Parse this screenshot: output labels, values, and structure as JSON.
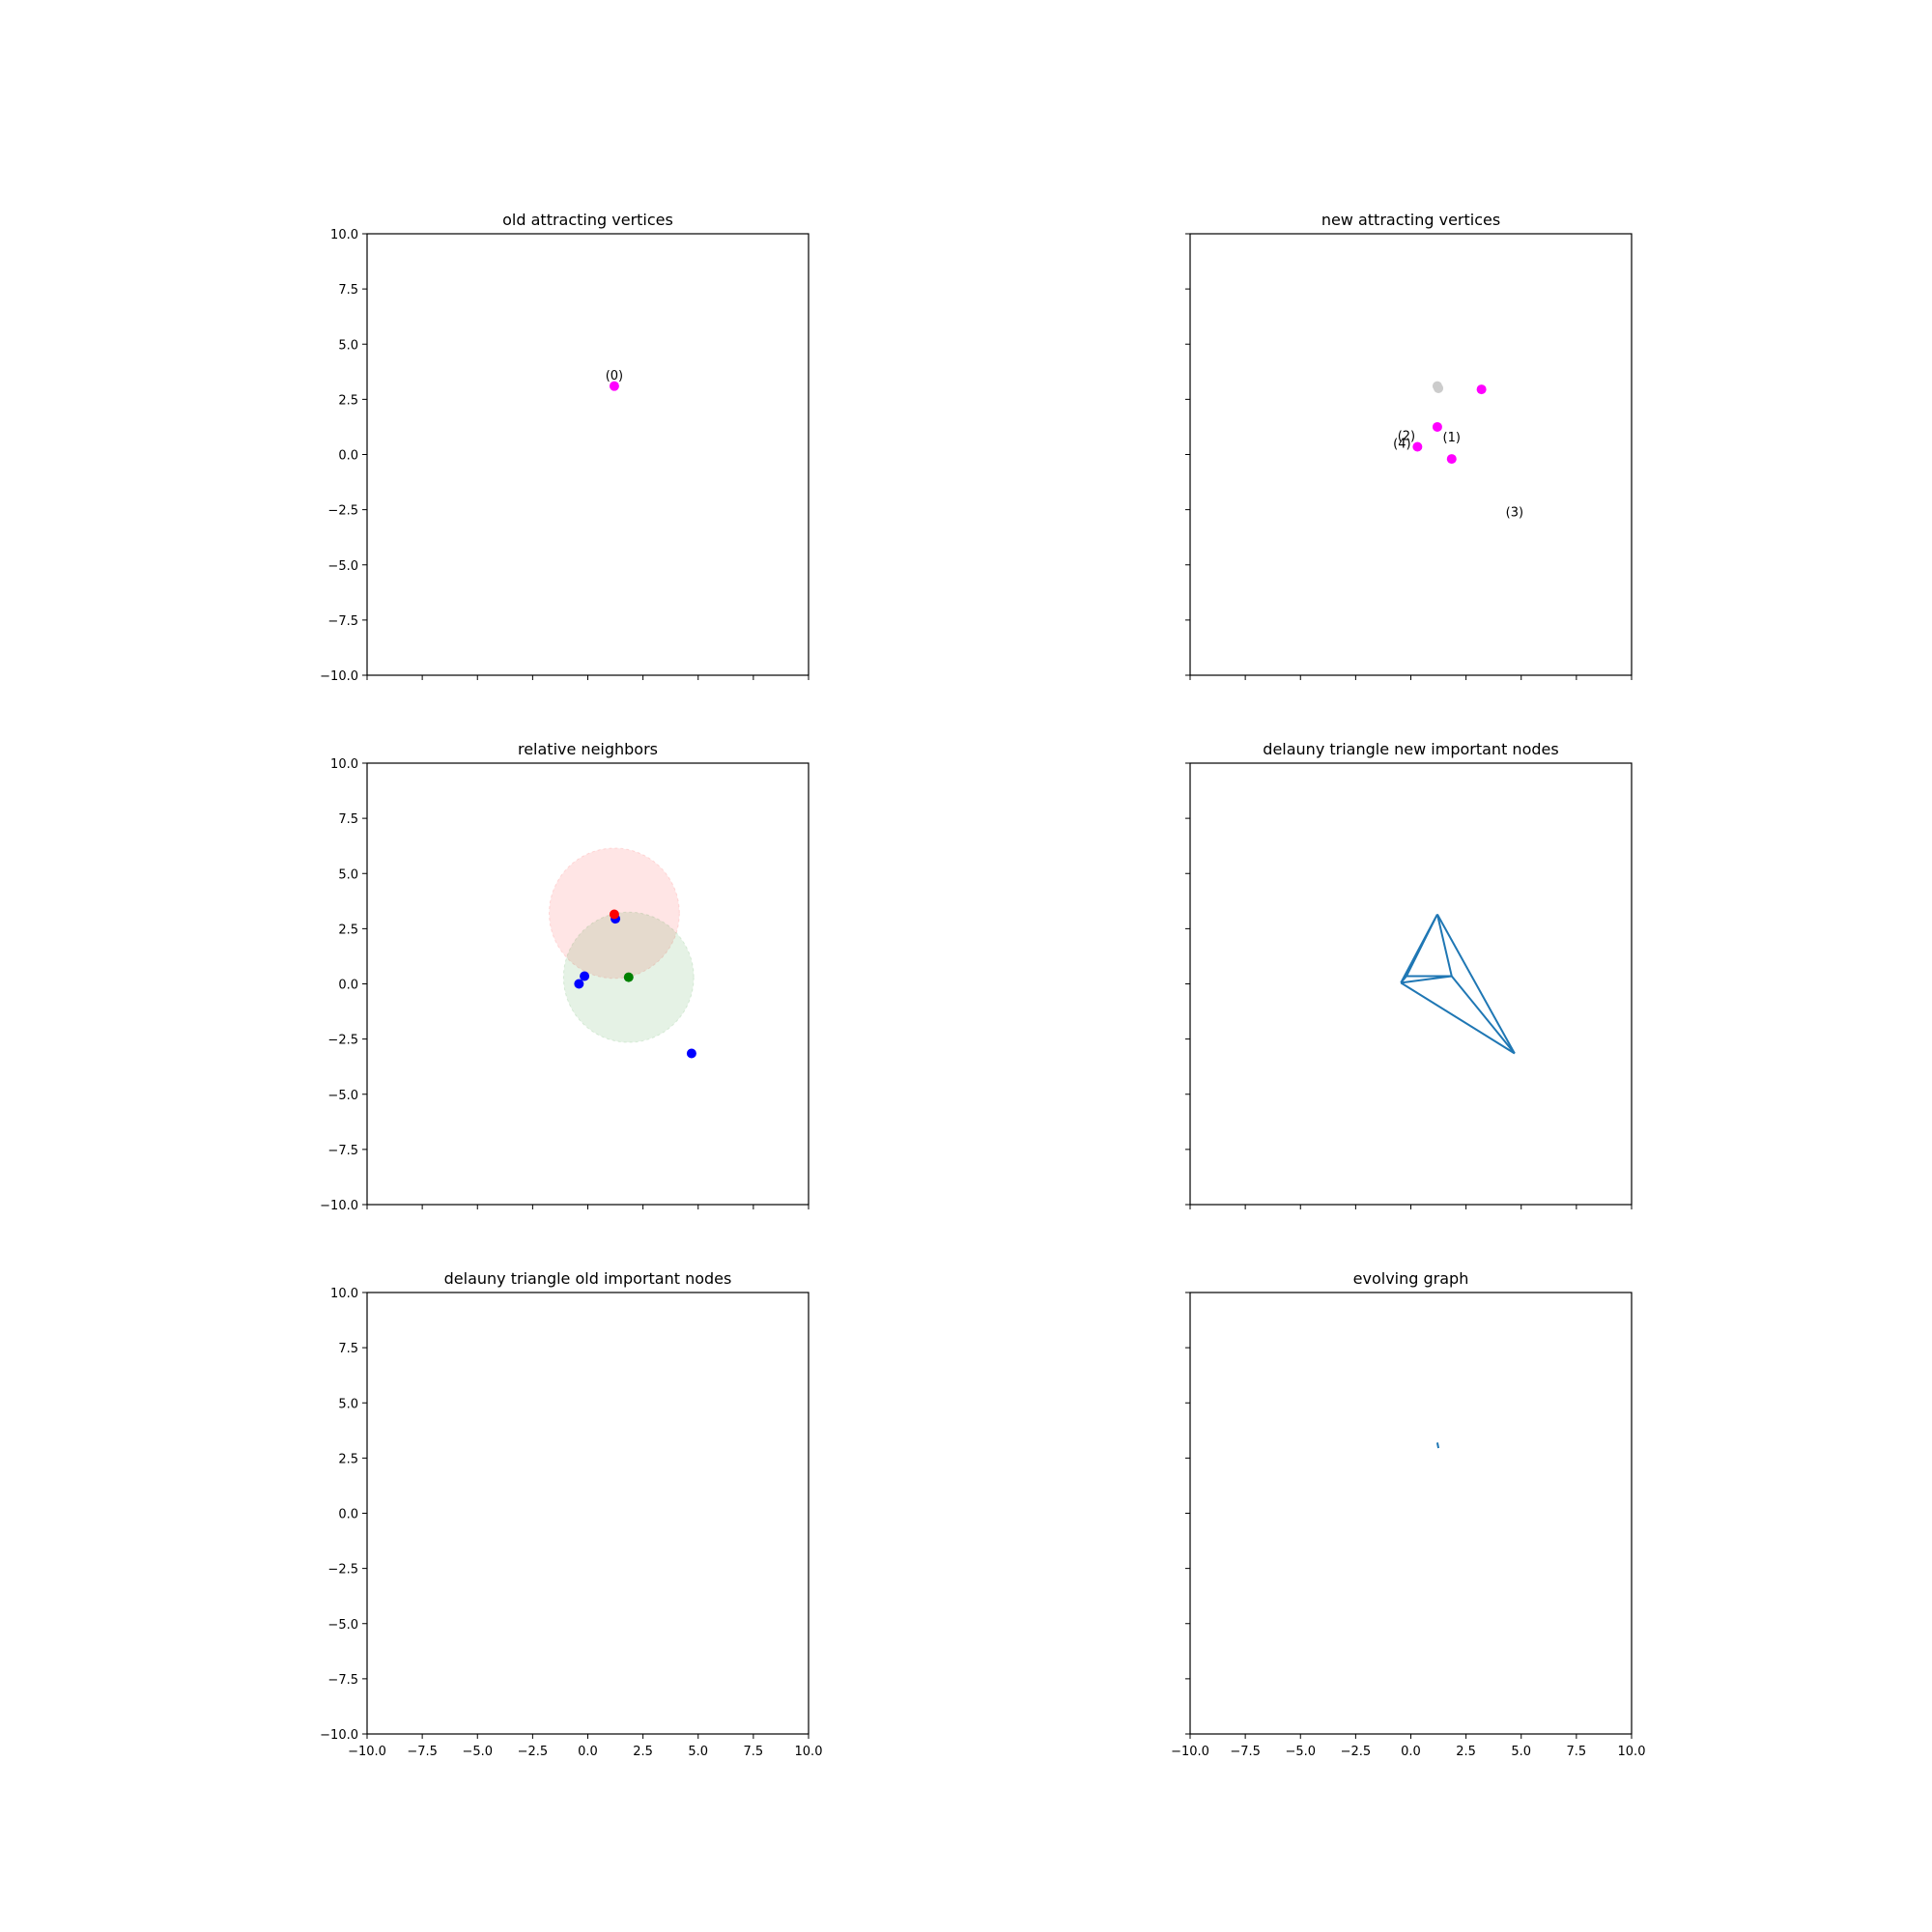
{
  "chart_data": [
    {
      "type": "scatter",
      "title": "old attracting vertices",
      "xlim": [
        -10,
        10
      ],
      "ylim": [
        -10,
        10
      ],
      "xticks": [],
      "yticks": [
        "−10.0",
        "−7.5",
        "−5.0",
        "−2.5",
        "0.0",
        "2.5",
        "5.0",
        "7.5",
        "10.0"
      ],
      "grid": false,
      "points": [
        {
          "x": 1.2,
          "y": 3.1,
          "color": "#ff00ff"
        }
      ],
      "labels": [
        {
          "text": "(0)",
          "x": 1.2,
          "y": 3.4
        }
      ],
      "circles": [],
      "segments": []
    },
    {
      "type": "scatter",
      "title": "new attracting vertices",
      "xlim": [
        -10,
        10
      ],
      "ylim": [
        -10,
        10
      ],
      "xticks": [],
      "yticks": [],
      "grid": false,
      "points": [
        {
          "x": 1.2,
          "y": 3.1,
          "color": "#cccccc"
        },
        {
          "x": 1.25,
          "y": 3.0,
          "color": "#cccccc"
        },
        {
          "x": 3.2,
          "y": 2.95,
          "color": "#ff00ff"
        },
        {
          "x": 1.2,
          "y": 1.25,
          "color": "#ff00ff"
        },
        {
          "x": 0.3,
          "y": 0.35,
          "color": "#ff00ff"
        },
        {
          "x": 1.85,
          "y": -0.2,
          "color": "#ff00ff"
        }
      ],
      "labels": [
        {
          "text": "(2)",
          "x": -0.2,
          "y": 0.65
        },
        {
          "text": "(4)",
          "x": -0.4,
          "y": 0.3
        },
        {
          "text": "(1)",
          "x": 1.85,
          "y": 0.6
        },
        {
          "text": "(3)",
          "x": 4.7,
          "y": -2.8
        }
      ],
      "circles": [],
      "segments": []
    },
    {
      "type": "scatter",
      "title": "relative neighbors",
      "xlim": [
        -10,
        10
      ],
      "ylim": [
        -10,
        10
      ],
      "xticks": [],
      "yticks": [
        "−10.0",
        "−7.5",
        "−5.0",
        "−2.5",
        "0.0",
        "2.5",
        "5.0",
        "7.5",
        "10.0"
      ],
      "grid": false,
      "points": [
        {
          "x": 1.25,
          "y": 2.95,
          "color": "#0000ff"
        },
        {
          "x": -0.15,
          "y": 0.35,
          "color": "#0000ff"
        },
        {
          "x": -0.4,
          "y": 0.0,
          "color": "#0000ff"
        },
        {
          "x": 4.7,
          "y": -3.15,
          "color": "#0000ff"
        },
        {
          "x": 1.2,
          "y": 3.15,
          "color": "#ff0000"
        },
        {
          "x": 1.85,
          "y": 0.3,
          "color": "#008000"
        }
      ],
      "labels": [],
      "circles": [
        {
          "cx": 1.2,
          "cy": 3.2,
          "r": 2.95,
          "color": "#ff0000",
          "alpha": 0.1
        },
        {
          "cx": 1.85,
          "cy": 0.3,
          "r": 2.95,
          "color": "#008000",
          "alpha": 0.1
        }
      ],
      "segments": []
    },
    {
      "type": "line",
      "title": "delauny triangle new important nodes",
      "xlim": [
        -10,
        10
      ],
      "ylim": [
        -10,
        10
      ],
      "xticks": [],
      "yticks": [],
      "grid": false,
      "points": [],
      "labels": [],
      "circles": [],
      "segments": [
        {
          "x": [
            1.2,
            -0.45
          ],
          "y": [
            3.15,
            0.05
          ],
          "color": "#1f77b4"
        },
        {
          "x": 1.2,
          "y": 3.15,
          "x2": 1.85,
          "y2": 0.35
        },
        {
          "x": [
            1.2,
            1.85
          ],
          "y": [
            3.15,
            0.35
          ],
          "color": "#1f77b4"
        },
        {
          "x": [
            1.2,
            4.7
          ],
          "y": [
            3.15,
            -3.15
          ],
          "color": "#1f77b4"
        },
        {
          "x": [
            -0.45,
            1.85
          ],
          "y": [
            0.05,
            0.35
          ],
          "color": "#1f77b4"
        },
        {
          "x": [
            -0.45,
            4.7
          ],
          "y": [
            0.05,
            -3.15
          ],
          "color": "#1f77b4"
        },
        {
          "x": [
            1.85,
            4.7
          ],
          "y": [
            0.35,
            -3.15
          ],
          "color": "#1f77b4"
        },
        {
          "x": [
            1.1,
            -0.2
          ],
          "y": [
            2.95,
            0.35
          ],
          "color": "#1f77b4"
        },
        {
          "x": [
            -0.2,
            1.85
          ],
          "y": [
            0.35,
            0.35
          ],
          "color": "#1f77b4"
        },
        {
          "x": [
            -0.45,
            -0.2
          ],
          "y": [
            0.05,
            0.35
          ],
          "color": "#1f77b4"
        }
      ]
    },
    {
      "type": "line",
      "title": "delauny triangle old important nodes",
      "xlim": [
        -10,
        10
      ],
      "ylim": [
        -10,
        10
      ],
      "xticks": [
        "−10.0",
        "−7.5",
        "−5.0",
        "−2.5",
        "0.0",
        "2.5",
        "5.0",
        "7.5",
        "10.0"
      ],
      "yticks": [
        "−10.0",
        "−7.5",
        "−5.0",
        "−2.5",
        "0.0",
        "2.5",
        "5.0",
        "7.5",
        "10.0"
      ],
      "grid": false,
      "points": [],
      "labels": [],
      "circles": [],
      "segments": []
    },
    {
      "type": "line",
      "title": "evolving graph",
      "xlim": [
        -10,
        10
      ],
      "ylim": [
        -10,
        10
      ],
      "xticks": [
        "−10.0",
        "−7.5",
        "−5.0",
        "−2.5",
        "0.0",
        "2.5",
        "5.0",
        "7.5",
        "10.0"
      ],
      "yticks": [],
      "grid": false,
      "points": [],
      "labels": [],
      "circles": [],
      "segments": [
        {
          "x": [
            1.2,
            1.25
          ],
          "y": [
            3.2,
            2.95
          ],
          "color": "#1f77b4"
        }
      ]
    }
  ]
}
